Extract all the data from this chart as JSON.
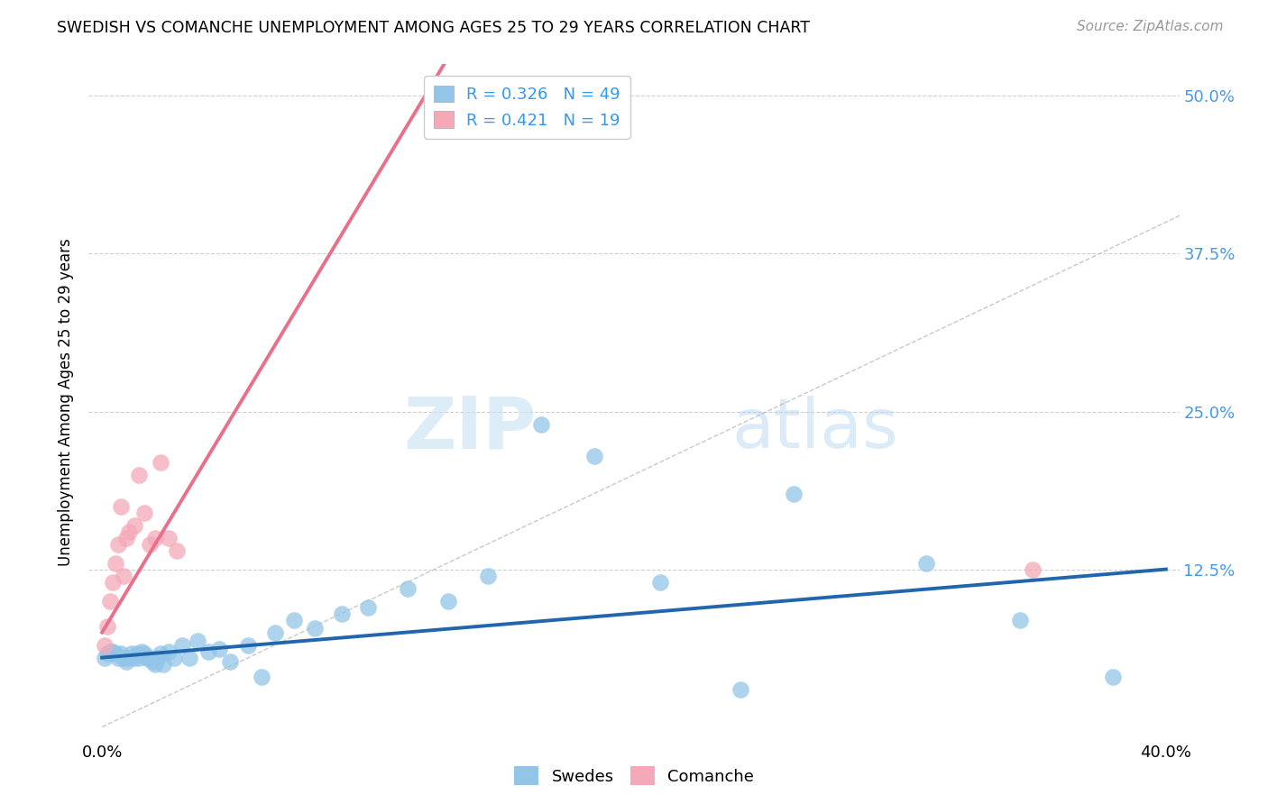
{
  "title": "SWEDISH VS COMANCHE UNEMPLOYMENT AMONG AGES 25 TO 29 YEARS CORRELATION CHART",
  "source": "Source: ZipAtlas.com",
  "ylabel": "Unemployment Among Ages 25 to 29 years",
  "xlim": [
    -0.005,
    0.405
  ],
  "ylim": [
    -0.01,
    0.525
  ],
  "xticks": [
    0.0,
    0.1,
    0.2,
    0.3,
    0.4
  ],
  "xticklabels": [
    "0.0%",
    "",
    "",
    "",
    "40.0%"
  ],
  "ytick_positions": [
    0.125,
    0.25,
    0.375,
    0.5
  ],
  "ytick_labels": [
    "12.5%",
    "25.0%",
    "37.5%",
    "50.0%"
  ],
  "legend_r_blue": "0.326",
  "legend_n_blue": "49",
  "legend_r_pink": "0.421",
  "legend_n_pink": "19",
  "blue_color": "#92c5e8",
  "pink_color": "#f4a8b8",
  "blue_line_color": "#2166ac",
  "pink_line_color": "#e8708a",
  "dashed_line_color": "#bbbbbb",
  "legend_label_blue": "Swedes",
  "legend_label_pink": "Comanche",
  "swedes_x": [
    0.001,
    0.002,
    0.003,
    0.004,
    0.005,
    0.006,
    0.007,
    0.008,
    0.009,
    0.01,
    0.011,
    0.012,
    0.013,
    0.014,
    0.015,
    0.016,
    0.017,
    0.018,
    0.019,
    0.02,
    0.021,
    0.022,
    0.023,
    0.025,
    0.027,
    0.03,
    0.033,
    0.036,
    0.04,
    0.044,
    0.048,
    0.055,
    0.06,
    0.065,
    0.072,
    0.08,
    0.09,
    0.1,
    0.115,
    0.13,
    0.145,
    0.165,
    0.185,
    0.21,
    0.24,
    0.26,
    0.31,
    0.345,
    0.38
  ],
  "swedes_y": [
    0.055,
    0.058,
    0.06,
    0.06,
    0.058,
    0.055,
    0.058,
    0.055,
    0.052,
    0.055,
    0.058,
    0.055,
    0.058,
    0.055,
    0.06,
    0.058,
    0.055,
    0.055,
    0.052,
    0.05,
    0.055,
    0.058,
    0.05,
    0.06,
    0.055,
    0.065,
    0.055,
    0.068,
    0.06,
    0.062,
    0.052,
    0.065,
    0.04,
    0.075,
    0.085,
    0.078,
    0.09,
    0.095,
    0.11,
    0.1,
    0.12,
    0.24,
    0.215,
    0.115,
    0.03,
    0.185,
    0.13,
    0.085,
    0.04
  ],
  "comanche_x": [
    0.001,
    0.002,
    0.003,
    0.004,
    0.005,
    0.006,
    0.007,
    0.008,
    0.009,
    0.01,
    0.012,
    0.014,
    0.016,
    0.018,
    0.02,
    0.022,
    0.025,
    0.028,
    0.35
  ],
  "comanche_y": [
    0.065,
    0.08,
    0.1,
    0.115,
    0.13,
    0.145,
    0.175,
    0.12,
    0.15,
    0.155,
    0.16,
    0.2,
    0.17,
    0.145,
    0.15,
    0.21,
    0.15,
    0.14,
    0.125
  ]
}
